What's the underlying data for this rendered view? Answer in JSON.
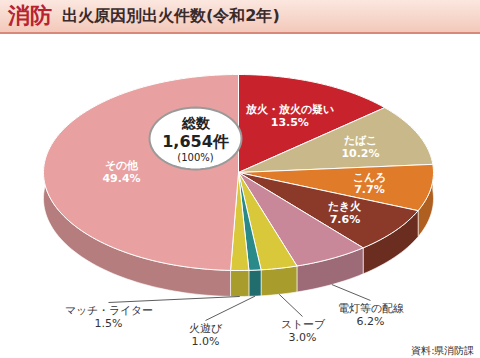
{
  "chart_data": {
    "type": "pie",
    "section": "消防",
    "title": "出火原因別出火件数(令和2年)",
    "categories": [
      "放火・放火の疑い",
      "たばこ",
      "こんろ",
      "たき火",
      "電灯等の配線",
      "ストーブ",
      "火遊び",
      "マッチ・ライター",
      "その他"
    ],
    "values": [
      13.5,
      10.2,
      7.7,
      7.6,
      6.2,
      3.0,
      1.0,
      1.5,
      49.4
    ],
    "value_labels": [
      "13.5%",
      "10.2%",
      "7.7%",
      "7.6%",
      "6.2%",
      "3.0%",
      "1.0%",
      "1.5%",
      "49.4%"
    ],
    "colors": [
      "#c8232c",
      "#c9b98a",
      "#e07b2a",
      "#8b3a2a",
      "#c9889a",
      "#d8c83a",
      "#2a8a8a",
      "#d8c83a",
      "#e8a0a0"
    ],
    "data_labels": true,
    "center_text": [
      "総数",
      "1,654件",
      "(100%)"
    ],
    "source": "資料:県消防課"
  }
}
